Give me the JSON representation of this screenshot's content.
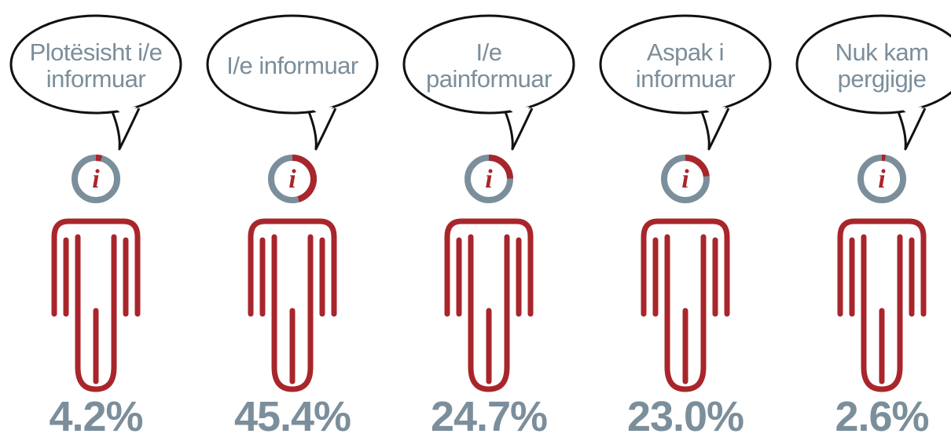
{
  "chart_data": {
    "type": "pictogram",
    "categories": [
      "Plotësisht i/e informuar",
      "I/e informuar",
      "I/e painformuar",
      "Aspak i informuar",
      "Nuk kam pergjigje"
    ],
    "values": [
      4.2,
      45.4,
      24.7,
      23.0,
      2.6
    ],
    "value_labels": [
      "4.2%",
      "45.4%",
      "24.7%",
      "23.0%",
      "2.6%"
    ],
    "icon_text": "i",
    "color": "#a8262b",
    "track_color": "#7b8e9b",
    "text_color": "#7b8e9b"
  }
}
